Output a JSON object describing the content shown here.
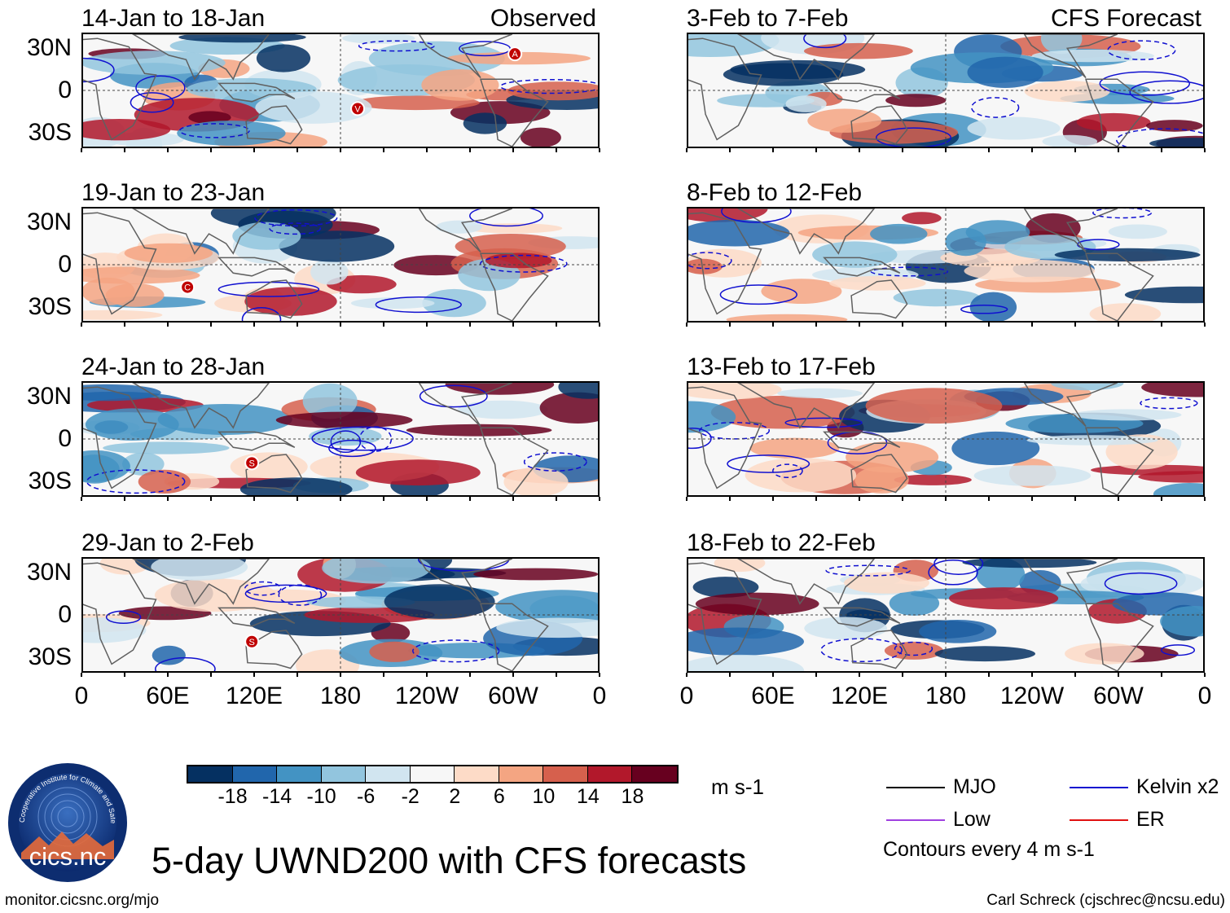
{
  "panels": [
    {
      "title": "14-Jan to 18-Jan",
      "tag": "Observed",
      "column": "left",
      "row": 0,
      "storms": [
        {
          "label": "A",
          "lon": 302,
          "lat": 26
        },
        {
          "label": "V",
          "lon": 192,
          "lat": -13
        }
      ]
    },
    {
      "title": "19-Jan to 23-Jan",
      "tag": "",
      "column": "left",
      "row": 1,
      "storms": [
        {
          "label": "C",
          "lon": 73,
          "lat": -16
        }
      ]
    },
    {
      "title": "24-Jan to 28-Jan",
      "tag": "",
      "column": "left",
      "row": 2,
      "storms": [
        {
          "label": "S",
          "lon": 118,
          "lat": -17
        }
      ]
    },
    {
      "title": "29-Jan to 2-Feb",
      "tag": "",
      "column": "left",
      "row": 3,
      "storms": [
        {
          "label": "S",
          "lon": 118,
          "lat": -19
        }
      ]
    },
    {
      "title": "3-Feb to 7-Feb",
      "tag": "CFS Forecast",
      "column": "right",
      "row": 0,
      "storms": []
    },
    {
      "title": "8-Feb to 12-Feb",
      "tag": "",
      "column": "right",
      "row": 1,
      "storms": []
    },
    {
      "title": "13-Feb to 17-Feb",
      "tag": "",
      "column": "right",
      "row": 2,
      "storms": []
    },
    {
      "title": "18-Feb to 22-Feb",
      "tag": "",
      "column": "right",
      "row": 3,
      "storms": []
    }
  ],
  "lat_labels": [
    "30N",
    "0",
    "30S"
  ],
  "lon_labels": [
    "0",
    "60E",
    "120E",
    "180",
    "120W",
    "60W",
    "0"
  ],
  "colorbar": {
    "colors": [
      "#053061",
      "#2166ac",
      "#4393c3",
      "#92c5de",
      "#d1e5f0",
      "#f7f7f7",
      "#fddbc7",
      "#f4a582",
      "#d6604d",
      "#b2182b",
      "#67001f"
    ],
    "ticks": [
      "-18",
      "-14",
      "-10",
      "-6",
      "-2",
      "2",
      "6",
      "10",
      "14",
      "18"
    ],
    "units": "m s-1"
  },
  "legend": {
    "items": [
      {
        "label": "MJO",
        "color": "#000000"
      },
      {
        "label": "Kelvin x2",
        "color": "#1010d0"
      },
      {
        "label": "Low",
        "color": "#a040e0"
      },
      {
        "label": "ER",
        "color": "#e01010"
      }
    ],
    "note": "Contours every 4 m s-1"
  },
  "logo": {
    "text": "cics.nc",
    "ring_text": "Cooperative Institute for Climate and Satellites"
  },
  "main_title": "5-day UWND200 with CFS forecasts",
  "footer_left": "monitor.cicsnc.org/mjo",
  "footer_right": "Carl Schreck (cjschrec@ncsu.edu)"
}
